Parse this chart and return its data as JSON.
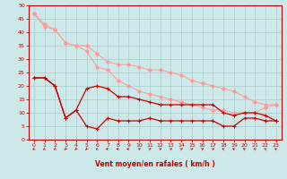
{
  "xlabel": "Vent moyen/en rafales ( km/h )",
  "xlim": [
    -0.5,
    23.5
  ],
  "ylim": [
    0,
    50
  ],
  "xticks": [
    0,
    1,
    2,
    3,
    4,
    5,
    6,
    7,
    8,
    9,
    10,
    11,
    12,
    13,
    14,
    15,
    16,
    17,
    18,
    19,
    20,
    21,
    22,
    23
  ],
  "yticks": [
    0,
    5,
    10,
    15,
    20,
    25,
    30,
    35,
    40,
    45,
    50
  ],
  "bg_color": "#cce8e8",
  "grid_color": "#aacccc",
  "line_color_dark": "#cc0000",
  "line_color_light": "#ff9999",
  "s1_y": [
    47,
    42,
    41,
    36,
    35,
    35,
    32,
    29,
    28,
    28,
    27,
    26,
    26,
    25,
    24,
    22,
    21,
    20,
    19,
    18,
    16,
    14,
    13,
    13
  ],
  "s2_y": [
    47,
    43,
    41,
    36,
    35,
    33,
    27,
    26,
    22,
    20,
    18,
    17,
    16,
    15,
    14,
    13,
    12,
    11,
    11,
    10,
    10,
    10,
    12,
    13
  ],
  "s3_y": [
    23,
    23,
    20,
    8,
    11,
    19,
    20,
    19,
    16,
    16,
    15,
    14,
    13,
    13,
    13,
    13,
    13,
    13,
    10,
    9,
    10,
    10,
    9,
    7
  ],
  "s4_y": [
    23,
    23,
    20,
    8,
    11,
    5,
    4,
    8,
    7,
    7,
    7,
    8,
    7,
    7,
    7,
    7,
    7,
    7,
    5,
    5,
    8,
    8,
    7,
    7
  ],
  "arrow_angles": [
    225,
    225,
    225,
    210,
    210,
    210,
    225,
    270,
    270,
    270,
    45,
    45,
    45,
    45,
    45,
    45,
    45,
    45,
    315,
    315,
    315,
    315,
    315,
    315
  ]
}
